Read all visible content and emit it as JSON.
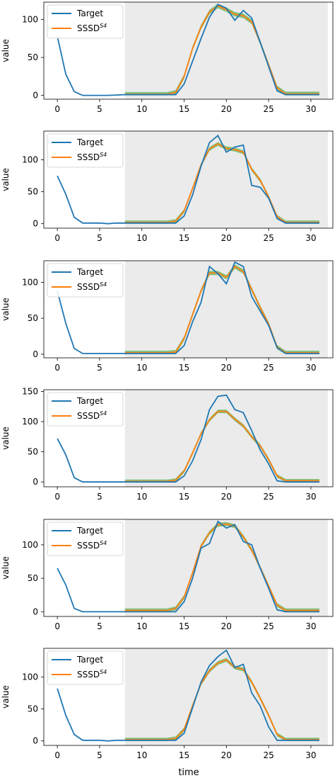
{
  "figure": {
    "xlabel": "time"
  },
  "chart_data": [
    {
      "type": "line",
      "ylabel": "value",
      "xlim": [
        -1.6,
        32.6
      ],
      "ylim": [
        -5,
        123
      ],
      "xticks": [
        0,
        5,
        10,
        15,
        20,
        25,
        30
      ],
      "yticks": [
        0,
        50,
        100
      ],
      "shaded_range": [
        8,
        32
      ],
      "legend": {
        "position": "top-left",
        "entries": [
          "Target",
          "SSSD"
        ],
        "superscript": "S4"
      },
      "series": [
        {
          "name": "Target",
          "color": "#1f77b4",
          "x": [
            0,
            1,
            2,
            3,
            4,
            5,
            6,
            7,
            8,
            9,
            10,
            11,
            12,
            13,
            14,
            15,
            16,
            17,
            18,
            19,
            20,
            21,
            22,
            23,
            24,
            25,
            26,
            27,
            28,
            29,
            30,
            31
          ],
          "values": [
            78,
            28,
            5,
            0,
            0,
            0,
            0,
            0.5,
            1,
            1,
            1,
            1,
            1,
            1,
            1,
            15,
            45,
            75,
            103,
            120,
            115,
            99,
            112,
            102,
            70,
            38,
            6,
            1,
            1,
            1,
            1,
            1
          ]
        },
        {
          "name": "SSSD",
          "color": "#ff7f0e",
          "x": [
            8,
            9,
            10,
            11,
            12,
            13,
            14,
            15,
            16,
            17,
            18,
            19,
            20,
            21,
            22,
            23,
            24,
            25,
            26,
            27,
            28,
            29,
            30,
            31
          ],
          "values": [
            1.5,
            1.5,
            1.5,
            1.5,
            1.5,
            1.5,
            4,
            25,
            62,
            90,
            110,
            118,
            113,
            107,
            105,
            97,
            70,
            40,
            10,
            2,
            2,
            2,
            2,
            2
          ]
        }
      ]
    },
    {
      "type": "line",
      "ylabel": "value",
      "xlim": [
        -1.6,
        32.6
      ],
      "ylim": [
        -7,
        145
      ],
      "xticks": [
        0,
        5,
        10,
        15,
        20,
        25,
        30
      ],
      "yticks": [
        0,
        50,
        100
      ],
      "shaded_range": [
        8,
        32
      ],
      "legend": {
        "position": "top-left",
        "entries": [
          "Target",
          "SSSD"
        ],
        "superscript": "S4"
      },
      "series": [
        {
          "name": "Target",
          "color": "#1f77b4",
          "x": [
            0,
            1,
            2,
            3,
            4,
            5,
            6,
            7,
            8,
            9,
            10,
            11,
            12,
            13,
            14,
            15,
            16,
            17,
            18,
            19,
            20,
            21,
            22,
            23,
            24,
            25,
            26,
            27,
            28,
            29,
            30,
            31
          ],
          "values": [
            75,
            46,
            10,
            1,
            1,
            1,
            0,
            1,
            1,
            1,
            1,
            1,
            1,
            1,
            1,
            12,
            45,
            90,
            127,
            138,
            112,
            120,
            123,
            60,
            57,
            40,
            8,
            1,
            1,
            1,
            1,
            1
          ]
        },
        {
          "name": "SSSD",
          "color": "#ff7f0e",
          "x": [
            8,
            9,
            10,
            11,
            12,
            13,
            14,
            15,
            16,
            17,
            18,
            19,
            20,
            21,
            22,
            23,
            24,
            25,
            26,
            27,
            28,
            29,
            30,
            31
          ],
          "values": [
            2,
            2,
            2,
            2,
            2,
            2,
            4,
            20,
            55,
            92,
            117,
            125,
            118,
            116,
            112,
            85,
            68,
            42,
            11,
            2,
            2,
            2,
            2,
            2
          ]
        }
      ]
    },
    {
      "type": "line",
      "ylabel": "value",
      "xlim": [
        -1.6,
        32.6
      ],
      "ylim": [
        -5,
        130
      ],
      "xticks": [
        0,
        5,
        10,
        15,
        20,
        25,
        30
      ],
      "yticks": [
        0,
        50,
        100
      ],
      "shaded_range": [
        8,
        32
      ],
      "legend": {
        "position": "top-left",
        "entries": [
          "Target",
          "SSSD"
        ],
        "superscript": "S4"
      },
      "series": [
        {
          "name": "Target",
          "color": "#1f77b4",
          "x": [
            0,
            1,
            2,
            3,
            4,
            5,
            6,
            7,
            8,
            9,
            10,
            11,
            12,
            13,
            14,
            15,
            16,
            17,
            18,
            19,
            20,
            21,
            22,
            23,
            24,
            25,
            26,
            27,
            28,
            29,
            30,
            31
          ],
          "values": [
            88,
            43,
            8,
            1,
            1,
            1,
            1,
            1,
            1,
            1,
            1,
            1,
            1,
            1,
            1,
            12,
            45,
            72,
            122,
            112,
            98,
            128,
            122,
            80,
            60,
            40,
            9,
            1,
            1,
            1,
            1,
            1
          ]
        },
        {
          "name": "SSSD",
          "color": "#ff7f0e",
          "x": [
            8,
            9,
            10,
            11,
            12,
            13,
            14,
            15,
            16,
            17,
            18,
            19,
            20,
            21,
            22,
            23,
            24,
            25,
            26,
            27,
            28,
            29,
            30,
            31
          ],
          "values": [
            2,
            2,
            2,
            2,
            2,
            2,
            3,
            22,
            55,
            88,
            113,
            113,
            107,
            122,
            115,
            90,
            65,
            42,
            10,
            2,
            2,
            2,
            2,
            2
          ]
        }
      ]
    },
    {
      "type": "line",
      "ylabel": "value",
      "xlim": [
        -1.6,
        32.6
      ],
      "ylim": [
        -8,
        153
      ],
      "xticks": [
        0,
        5,
        10,
        15,
        20,
        25,
        30
      ],
      "yticks": [
        0,
        50,
        100,
        150
      ],
      "shaded_range": [
        8,
        32
      ],
      "legend": {
        "position": "top-left",
        "entries": [
          "Target",
          "SSSD"
        ],
        "superscript": "S4"
      },
      "series": [
        {
          "name": "Target",
          "color": "#1f77b4",
          "x": [
            0,
            1,
            2,
            3,
            4,
            5,
            6,
            7,
            8,
            9,
            10,
            11,
            12,
            13,
            14,
            15,
            16,
            17,
            18,
            19,
            20,
            21,
            22,
            23,
            24,
            25,
            26,
            27,
            28,
            29,
            30,
            31
          ],
          "values": [
            72,
            45,
            7,
            0,
            0,
            0,
            0,
            0,
            0,
            0,
            0,
            0,
            0,
            0,
            0,
            10,
            35,
            70,
            120,
            142,
            144,
            120,
            115,
            85,
            53,
            30,
            2,
            0,
            0,
            0,
            0,
            0
          ]
        },
        {
          "name": "SSSD",
          "color": "#ff7f0e",
          "x": [
            8,
            9,
            10,
            11,
            12,
            13,
            14,
            15,
            16,
            17,
            18,
            19,
            20,
            21,
            22,
            23,
            24,
            25,
            26,
            27,
            28,
            29,
            30,
            31
          ],
          "values": [
            1,
            1,
            1,
            1,
            1,
            1,
            3,
            18,
            48,
            80,
            103,
            117,
            117,
            104,
            93,
            75,
            60,
            37,
            10,
            2,
            2,
            2,
            2,
            2
          ]
        }
      ]
    },
    {
      "type": "line",
      "ylabel": "value",
      "xlim": [
        -1.6,
        32.6
      ],
      "ylim": [
        -7,
        138
      ],
      "xticks": [
        0,
        5,
        10,
        15,
        20,
        25,
        30
      ],
      "yticks": [
        0,
        50,
        100
      ],
      "shaded_range": [
        8,
        32
      ],
      "legend": {
        "position": "top-left",
        "entries": [
          "Target",
          "SSSD"
        ],
        "superscript": "S4"
      },
      "series": [
        {
          "name": "Target",
          "color": "#1f77b4",
          "x": [
            0,
            1,
            2,
            3,
            4,
            5,
            6,
            7,
            8,
            9,
            10,
            11,
            12,
            13,
            14,
            15,
            16,
            17,
            18,
            19,
            20,
            21,
            22,
            23,
            24,
            25,
            26,
            27,
            28,
            29,
            30,
            31
          ],
          "values": [
            65,
            40,
            5,
            0,
            0,
            0,
            0,
            0,
            0,
            0,
            0,
            0,
            0,
            0,
            0,
            15,
            50,
            95,
            102,
            135,
            125,
            130,
            105,
            100,
            65,
            35,
            3,
            0,
            0,
            0,
            0,
            0
          ]
        },
        {
          "name": "SSSD",
          "color": "#ff7f0e",
          "x": [
            8,
            9,
            10,
            11,
            12,
            13,
            14,
            15,
            16,
            17,
            18,
            19,
            20,
            21,
            22,
            23,
            24,
            25,
            26,
            27,
            28,
            29,
            30,
            31
          ],
          "values": [
            2,
            2,
            2,
            2,
            2,
            2,
            5,
            22,
            58,
            98,
            118,
            130,
            131,
            128,
            112,
            92,
            66,
            38,
            10,
            2,
            2,
            2,
            2,
            2
          ]
        }
      ]
    },
    {
      "type": "line",
      "ylabel": "value",
      "xlim": [
        -1.6,
        32.6
      ],
      "ylim": [
        -7,
        145
      ],
      "xticks": [
        0,
        5,
        10,
        15,
        20,
        25,
        30
      ],
      "yticks": [
        0,
        50,
        100
      ],
      "shaded_range": [
        8,
        32
      ],
      "legend": {
        "position": "top-left",
        "entries": [
          "Target",
          "SSSD"
        ],
        "superscript": "S4"
      },
      "series": [
        {
          "name": "Target",
          "color": "#1f77b4",
          "x": [
            0,
            1,
            2,
            3,
            4,
            5,
            6,
            7,
            8,
            9,
            10,
            11,
            12,
            13,
            14,
            15,
            16,
            17,
            18,
            19,
            20,
            21,
            22,
            23,
            24,
            25,
            26,
            27,
            28,
            29,
            30,
            31
          ],
          "values": [
            82,
            40,
            10,
            1,
            1,
            1,
            0,
            1,
            1,
            1,
            1,
            1,
            1,
            1,
            1,
            12,
            52,
            92,
            118,
            132,
            142,
            115,
            120,
            75,
            55,
            22,
            1,
            1,
            1,
            1,
            1,
            1
          ]
        },
        {
          "name": "SSSD",
          "color": "#ff7f0e",
          "x": [
            8,
            9,
            10,
            11,
            12,
            13,
            14,
            15,
            16,
            17,
            18,
            19,
            20,
            21,
            22,
            23,
            24,
            25,
            26,
            27,
            28,
            29,
            30,
            31
          ],
          "values": [
            2,
            2,
            2,
            2,
            2,
            2,
            4,
            18,
            55,
            90,
            110,
            122,
            127,
            115,
            112,
            92,
            67,
            40,
            10,
            2,
            2,
            2,
            2,
            2
          ]
        }
      ]
    }
  ]
}
